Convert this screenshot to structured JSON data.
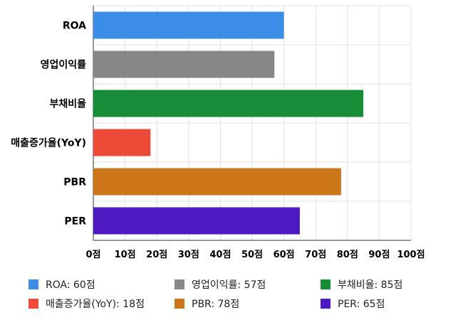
{
  "chart_data": {
    "type": "bar",
    "orientation": "horizontal",
    "categories": [
      "ROA",
      "영업이익률",
      "부채비율",
      "매출증가율(YoY)",
      "PBR",
      "PER"
    ],
    "values": [
      60,
      57,
      85,
      18,
      78,
      65
    ],
    "colors": [
      "#3b8de8",
      "#878787",
      "#168d36",
      "#ee4a38",
      "#cc7519",
      "#4c1ac0"
    ],
    "xlim": [
      0,
      100
    ],
    "xticks": [
      "0점",
      "10점",
      "20점",
      "30점",
      "40점",
      "50점",
      "60점",
      "70점",
      "80점",
      "90점",
      "100점"
    ],
    "grid": true,
    "legend": {
      "placement": "bottom",
      "items": [
        "ROA: 60점",
        "영업이익률: 57점",
        "부채비율: 85점",
        "매출증가율(YoY): 18점",
        "PBR: 78점",
        "PER: 65점"
      ]
    }
  }
}
